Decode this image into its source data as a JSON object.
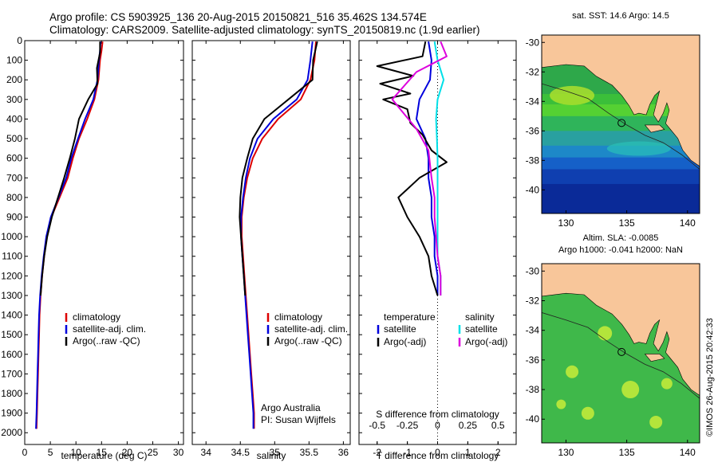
{
  "header": {
    "line1": "Argo profile: CS 5903925_136 20-Aug-2015 20150821_516 35.462S 134.574E",
    "line2": "Climatology: CARS2009. Satellite-adjusted climatology: synTS_20150819.nc (1.9d earlier)"
  },
  "stamp": "©IMOS 26-Aug-2015 20:42:33",
  "colors": {
    "climatology": "#dd0000",
    "satellite": "#0000dd",
    "argo": "#000000",
    "sat_salinity": "#00e0e8",
    "argo_salinity": "#dd00dd",
    "land": "#f8c69a"
  },
  "chart_data": [
    {
      "type": "line",
      "xlabel": "temperature (deg C)",
      "xlim": [
        0,
        31
      ],
      "ylim": [
        0,
        2060
      ],
      "x_ticks": [
        "0",
        "5",
        "10",
        "15",
        "20",
        "25",
        "30"
      ],
      "y_ticks": [
        "0",
        "100",
        "200",
        "300",
        "400",
        "500",
        "600",
        "700",
        "800",
        "900",
        "1000",
        "1100",
        "1200",
        "1300",
        "1400",
        "1500",
        "1600",
        "1700",
        "1800",
        "1900",
        "2000"
      ],
      "legend": [
        "climatology",
        "satellite-adj. clim.",
        "Argo(..raw -QC)"
      ],
      "series": [
        {
          "name": "climatology",
          "color": "#dd0000",
          "points": [
            [
              15.2,
              5
            ],
            [
              15.0,
              50
            ],
            [
              14.7,
              100
            ],
            [
              14.4,
              200
            ],
            [
              13.6,
              300
            ],
            [
              12.2,
              400
            ],
            [
              10.6,
              500
            ],
            [
              9.4,
              600
            ],
            [
              8.4,
              700
            ],
            [
              6.8,
              800
            ],
            [
              5.2,
              900
            ],
            [
              4.3,
              1000
            ],
            [
              3.8,
              1100
            ],
            [
              3.4,
              1200
            ],
            [
              3.1,
              1300
            ],
            [
              2.9,
              1400
            ],
            [
              2.8,
              1500
            ],
            [
              2.7,
              1600
            ],
            [
              2.6,
              1700
            ],
            [
              2.5,
              1800
            ],
            [
              2.4,
              1900
            ],
            [
              2.3,
              1980
            ]
          ]
        },
        {
          "name": "satellite-adj. clim.",
          "color": "#0000dd",
          "points": [
            [
              14.8,
              5
            ],
            [
              14.7,
              50
            ],
            [
              14.5,
              100
            ],
            [
              14.2,
              200
            ],
            [
              13.4,
              300
            ],
            [
              11.8,
              400
            ],
            [
              10.4,
              500
            ],
            [
              9.1,
              600
            ],
            [
              8.1,
              700
            ],
            [
              6.6,
              800
            ],
            [
              5.1,
              900
            ],
            [
              4.2,
              1000
            ],
            [
              3.7,
              1100
            ],
            [
              3.3,
              1200
            ],
            [
              3.0,
              1300
            ],
            [
              2.8,
              1400
            ],
            [
              2.7,
              1500
            ],
            [
              2.6,
              1600
            ],
            [
              2.5,
              1700
            ],
            [
              2.4,
              1800
            ],
            [
              2.3,
              1900
            ],
            [
              2.2,
              1980
            ]
          ]
        },
        {
          "name": "Argo(..raw -QC)",
          "color": "#000000",
          "points": [
            [
              14.7,
              5
            ],
            [
              14.7,
              60
            ],
            [
              14.1,
              140
            ],
            [
              14.2,
              220
            ],
            [
              12.4,
              300
            ],
            [
              10.6,
              400
            ],
            [
              9.8,
              500
            ],
            [
              8.8,
              600
            ],
            [
              7.7,
              700
            ],
            [
              6.5,
              800
            ],
            [
              5.3,
              900
            ],
            [
              4.4,
              1000
            ],
            [
              3.8,
              1100
            ],
            [
              3.4,
              1200
            ],
            [
              3.1,
              1300
            ]
          ]
        }
      ]
    },
    {
      "type": "line",
      "xlabel": "salinity",
      "xlim": [
        33.8,
        36.1
      ],
      "ylim": [
        0,
        2060
      ],
      "x_ticks": [
        "34",
        "34.5",
        "35",
        "35.5",
        "36"
      ],
      "legend": [
        "climatology",
        "satellite-adj. clim.",
        "Argo(..raw -QC)"
      ],
      "annotation": [
        "Argo Australia",
        "PI: Susan Wijffels"
      ],
      "series": [
        {
          "name": "climatology",
          "color": "#dd0000",
          "points": [
            [
              35.6,
              5
            ],
            [
              35.58,
              100
            ],
            [
              35.52,
              200
            ],
            [
              35.38,
              300
            ],
            [
              35.05,
              400
            ],
            [
              34.82,
              500
            ],
            [
              34.68,
              600
            ],
            [
              34.6,
              700
            ],
            [
              34.55,
              800
            ],
            [
              34.52,
              900
            ],
            [
              34.52,
              1000
            ],
            [
              34.54,
              1100
            ],
            [
              34.56,
              1200
            ],
            [
              34.58,
              1300
            ],
            [
              34.6,
              1400
            ],
            [
              34.62,
              1500
            ],
            [
              34.64,
              1600
            ],
            [
              34.66,
              1700
            ],
            [
              34.68,
              1800
            ],
            [
              34.7,
              1900
            ],
            [
              34.7,
              1980
            ]
          ]
        },
        {
          "name": "satellite-adj. clim.",
          "color": "#0000dd",
          "points": [
            [
              35.55,
              5
            ],
            [
              35.52,
              100
            ],
            [
              35.48,
              200
            ],
            [
              35.32,
              300
            ],
            [
              34.98,
              400
            ],
            [
              34.75,
              500
            ],
            [
              34.64,
              600
            ],
            [
              34.58,
              700
            ],
            [
              34.54,
              800
            ],
            [
              34.51,
              900
            ],
            [
              34.51,
              1000
            ],
            [
              34.53,
              1100
            ],
            [
              34.55,
              1200
            ],
            [
              34.57,
              1300
            ],
            [
              34.59,
              1400
            ],
            [
              34.61,
              1500
            ],
            [
              34.63,
              1600
            ],
            [
              34.65,
              1700
            ],
            [
              34.67,
              1800
            ],
            [
              34.69,
              1900
            ],
            [
              34.69,
              1980
            ]
          ]
        },
        {
          "name": "Argo(..raw -QC)",
          "color": "#000000",
          "points": [
            [
              35.62,
              5
            ],
            [
              35.56,
              100
            ],
            [
              35.55,
              200
            ],
            [
              35.2,
              300
            ],
            [
              34.85,
              400
            ],
            [
              34.68,
              500
            ],
            [
              34.6,
              600
            ],
            [
              34.53,
              700
            ],
            [
              34.5,
              800
            ],
            [
              34.49,
              900
            ],
            [
              34.51,
              1000
            ],
            [
              34.53,
              1100
            ],
            [
              34.55,
              1200
            ],
            [
              34.57,
              1300
            ]
          ]
        }
      ]
    },
    {
      "type": "line",
      "xlabel": "T difference from climatology",
      "xlabel_top": "S difference from climatology",
      "xlim": [
        -2.6,
        2.6
      ],
      "ylim": [
        0,
        2060
      ],
      "x_ticks": [
        "-2",
        "-1",
        "0",
        "1",
        "2"
      ],
      "x_ticks_top": [
        "-0.5",
        "-0.25",
        "0",
        "0.25",
        "0.5"
      ],
      "legend_headers": [
        "temperature",
        "salinity"
      ],
      "legend": [
        "satellite",
        "Argo(-adj)",
        "satellite",
        "Argo(-adj)"
      ],
      "series": [
        {
          "name": "satellite",
          "color": "#0000dd",
          "points": [
            [
              -0.3,
              5
            ],
            [
              -0.2,
              100
            ],
            [
              -0.25,
              200
            ],
            [
              -0.6,
              300
            ],
            [
              -0.7,
              400
            ],
            [
              -0.4,
              500
            ],
            [
              -0.3,
              600
            ],
            [
              -0.3,
              700
            ],
            [
              -0.2,
              800
            ],
            [
              -0.2,
              900
            ],
            [
              -0.1,
              1000
            ],
            [
              -0.1,
              1100
            ],
            [
              0,
              1200
            ],
            [
              0,
              1300
            ]
          ]
        },
        {
          "name": "Argo(-adj)",
          "color": "#000000",
          "points": [
            [
              -0.4,
              5
            ],
            [
              -0.5,
              80
            ],
            [
              -2.0,
              130
            ],
            [
              -0.8,
              180
            ],
            [
              -1.9,
              220
            ],
            [
              -0.9,
              270
            ],
            [
              -1.8,
              300
            ],
            [
              -1.0,
              350
            ],
            [
              -0.9,
              420
            ],
            [
              -0.5,
              480
            ],
            [
              -0.2,
              560
            ],
            [
              0.3,
              620
            ],
            [
              -0.6,
              700
            ],
            [
              -1.3,
              800
            ],
            [
              -1.0,
              900
            ],
            [
              -0.6,
              1000
            ],
            [
              -0.3,
              1100
            ],
            [
              -0.2,
              1200
            ],
            [
              0,
              1300
            ]
          ]
        },
        {
          "name": "satellite",
          "color": "#00e0e8",
          "points": [
            [
              -0.1,
              5
            ],
            [
              0,
              100
            ],
            [
              0.2,
              200
            ],
            [
              0.0,
              300
            ],
            [
              -0.05,
              400
            ],
            [
              -0.02,
              500
            ],
            [
              0,
              600
            ],
            [
              0,
              700
            ],
            [
              0,
              800
            ],
            [
              0,
              900
            ],
            [
              0,
              1000
            ],
            [
              0,
              1100
            ],
            [
              0.1,
              1200
            ],
            [
              0.1,
              1300
            ]
          ]
        },
        {
          "name": "Argo(-adj)",
          "color": "#dd00dd",
          "points": [
            [
              0.1,
              5
            ],
            [
              0.3,
              80
            ],
            [
              -0.7,
              160
            ],
            [
              -1.5,
              300
            ],
            [
              -0.7,
              450
            ],
            [
              -0.3,
              560
            ],
            [
              -0.2,
              700
            ],
            [
              -0.1,
              800
            ],
            [
              -0.1,
              900
            ],
            [
              -0.05,
              1000
            ],
            [
              0,
              1100
            ],
            [
              0.1,
              1200
            ],
            [
              0.1,
              1300
            ]
          ]
        }
      ]
    },
    {
      "type": "heatmap",
      "title": "sat. SST: 14.6 Argo: 14.5",
      "xlim": [
        128,
        141
      ],
      "ylim": [
        -41.6,
        -29.5
      ],
      "x_ticks": [
        "130",
        "135",
        "140"
      ],
      "y_ticks": [
        "-30",
        "-32",
        "-34",
        "-36",
        "-38",
        "-40"
      ],
      "argo_position": [
        134.574,
        -35.462
      ]
    },
    {
      "type": "heatmap",
      "title": "Altim. SLA: -0.0085",
      "subtitle": "Argo h1000: -0.041 h2000: NaN",
      "xlim": [
        128,
        141
      ],
      "ylim": [
        -41.6,
        -29.5
      ],
      "x_ticks": [
        "130",
        "135",
        "140"
      ],
      "y_ticks": [
        "-30",
        "-32",
        "-34",
        "-36",
        "-38",
        "-40"
      ],
      "argo_position": [
        134.574,
        -35.462
      ]
    }
  ]
}
